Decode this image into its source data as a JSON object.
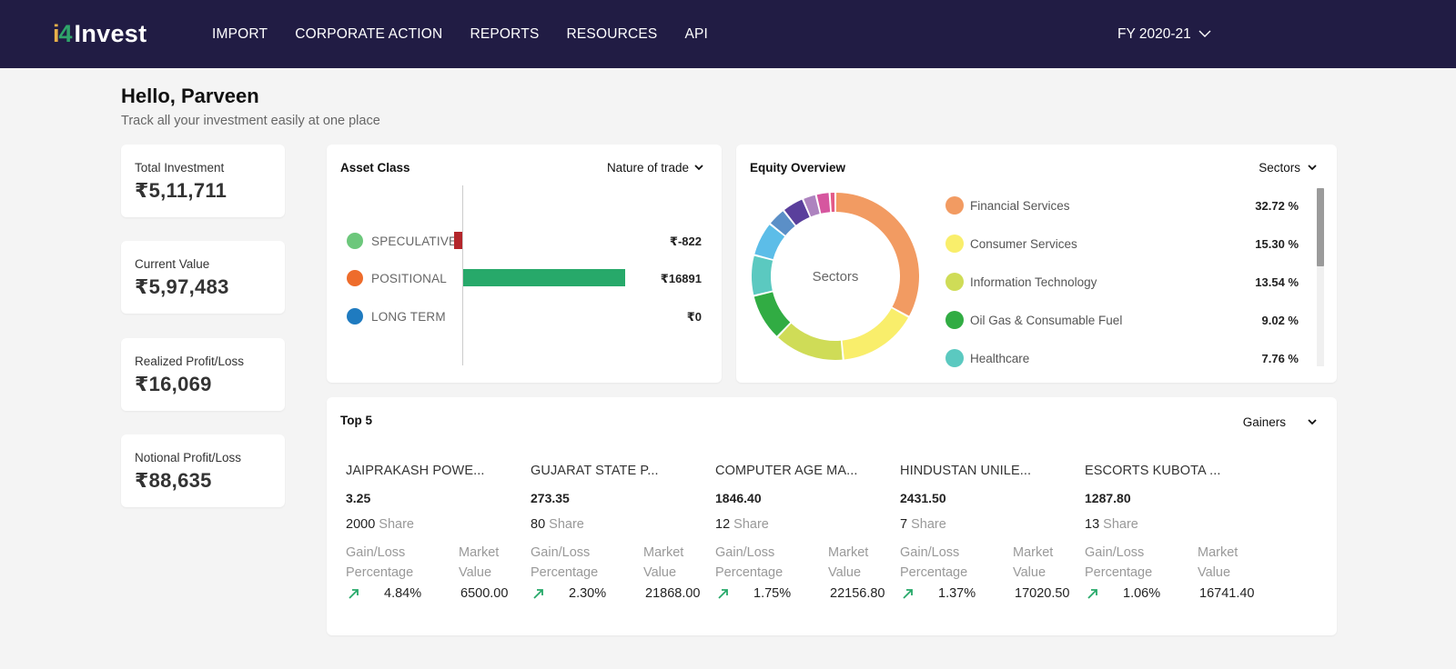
{
  "brand": {
    "logo_prefix_i": "i",
    "logo_prefix_4": "4",
    "logo_text": "Invest"
  },
  "nav": [
    "IMPORT",
    "CORPORATE ACTION",
    "REPORTS",
    "RESOURCES",
    "API"
  ],
  "fiscal_year": "FY 2020-21",
  "greeting": {
    "title": "Hello, Parveen",
    "subtitle": "Track all your investment easily at one place"
  },
  "stats": [
    {
      "label": "Total Investment",
      "value": "₹5,11,711"
    },
    {
      "label": "Current Value",
      "value": "₹5,97,483"
    },
    {
      "label": "Realized Profit/Loss",
      "value": "₹16,069"
    },
    {
      "label": "Notional Profit/Loss",
      "value": "₹88,635"
    }
  ],
  "asset_class": {
    "title": "Asset Class",
    "dropdown": "Nature of trade",
    "rows": [
      {
        "label": "SPECULATIVE",
        "value_text": "₹-822",
        "value": -822,
        "dot_color": "#6cc77b",
        "bar_color": "#b3262b"
      },
      {
        "label": "POSITIONAL",
        "value_text": "₹16891",
        "value": 16891,
        "dot_color": "#ee6c2b",
        "bar_color": "#27a96a"
      },
      {
        "label": "LONG TERM",
        "value_text": "₹0",
        "value": 0,
        "dot_color": "#1f7bc0",
        "bar_color": "#1f7bc0"
      }
    ]
  },
  "equity": {
    "title": "Equity Overview",
    "dropdown": "Sectors",
    "center_label": "Sectors",
    "legend": [
      {
        "label": "Financial Services",
        "pct": "32.72 %",
        "color": "#f29b62"
      },
      {
        "label": "Consumer Services",
        "pct": "15.30 %",
        "color": "#f9ee6b"
      },
      {
        "label": "Information Technology",
        "pct": "13.54 %",
        "color": "#cfdc57"
      },
      {
        "label": "Oil Gas & Consumable Fuel",
        "pct": "9.02 %",
        "color": "#31ac43"
      },
      {
        "label": "Healthcare",
        "pct": "7.76 %",
        "color": "#5bc9c0"
      }
    ]
  },
  "chart_data": {
    "type": "pie",
    "center_label": "Sectors",
    "series": [
      {
        "values": [
          32.72,
          15.3,
          13.54,
          9.02,
          7.76,
          6.6,
          3.6,
          4.2,
          2.6,
          2.6,
          1.1
        ]
      }
    ],
    "categories": [
      "Financial Services",
      "Consumer Services",
      "Information Technology",
      "Oil Gas & Consumable Fuel",
      "Healthcare",
      "",
      "",
      "",
      "",
      "",
      ""
    ],
    "colors": [
      "#f29b62",
      "#f9ee6b",
      "#cfdc57",
      "#31ac43",
      "#5bc9c0",
      "#5cbde8",
      "#5b8fc7",
      "#5a3f9c",
      "#ad83bf",
      "#d6569f",
      "#e35a87"
    ]
  },
  "top5": {
    "title": "Top 5",
    "dropdown": "Gainers",
    "gain_label_1": "Gain/Loss",
    "gain_label_2": "Percentage",
    "market_label_1": "Market",
    "market_label_2": "Value",
    "share_label": "Share",
    "items": [
      {
        "name": "JAIPRAKASH POWE...",
        "price": "3.25",
        "shares": "2000",
        "pct": "4.84%",
        "market_value": "6500.00"
      },
      {
        "name": "GUJARAT STATE P...",
        "price": "273.35",
        "shares": "80",
        "pct": "2.30%",
        "market_value": "21868.00"
      },
      {
        "name": "COMPUTER AGE MA...",
        "price": "1846.40",
        "shares": "12",
        "pct": "1.75%",
        "market_value": "22156.80"
      },
      {
        "name": "HINDUSTAN UNILE...",
        "price": "2431.50",
        "shares": "7",
        "pct": "1.37%",
        "market_value": "17020.50"
      },
      {
        "name": "ESCORTS KUBOTA ...",
        "price": "1287.80",
        "shares": "13",
        "pct": "1.06%",
        "market_value": "16741.40"
      }
    ]
  }
}
